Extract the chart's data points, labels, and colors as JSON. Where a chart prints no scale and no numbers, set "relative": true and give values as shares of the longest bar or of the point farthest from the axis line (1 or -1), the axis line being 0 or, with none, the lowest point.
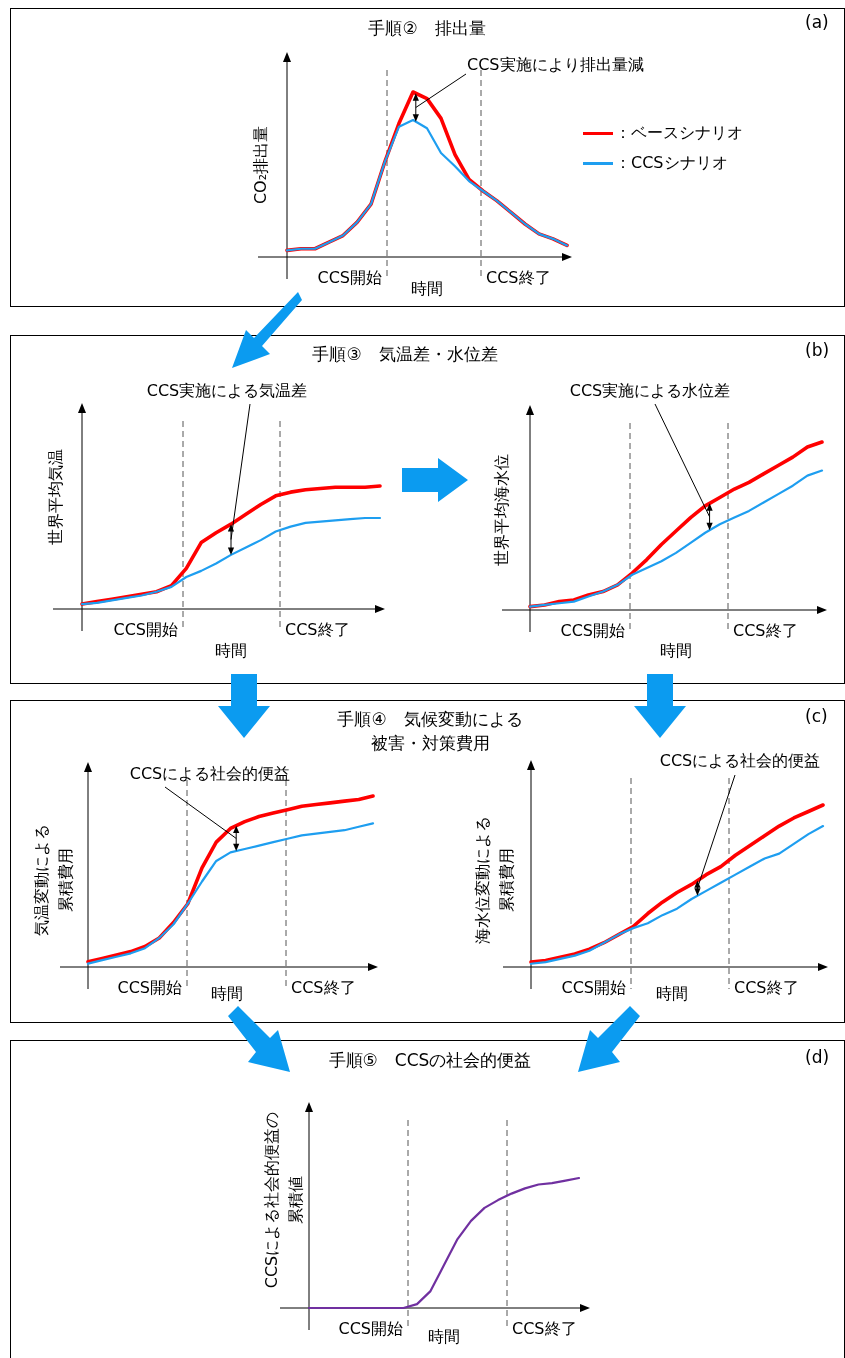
{
  "chart_data": [
    {
      "type": "line",
      "title": "手順②　排出量",
      "xlabel": "時間",
      "ylabel": "CO₂排出量",
      "relative": true,
      "legend": "right",
      "marker": "none",
      "categories": [
        null,
        null,
        null,
        null,
        null,
        null,
        null,
        null,
        null,
        null,
        null,
        null,
        null,
        null,
        null,
        null,
        null,
        null,
        null,
        null,
        null
      ],
      "series": [
        {
          "name": "：ベースシナリオ",
          "color": "#ff0000",
          "values": [
            0.04,
            0.05,
            0.05,
            0.09,
            0.13,
            0.21,
            0.32,
            0.58,
            0.81,
            1,
            0.96,
            0.84,
            0.62,
            0.47,
            0.4,
            0.34,
            0.27,
            0.2,
            0.14,
            0.11,
            0.07
          ]
        },
        {
          "name": "：CCSシナリオ",
          "color": "#1e9ef0",
          "values": [
            0.04,
            0.05,
            0.05,
            0.09,
            0.13,
            0.21,
            0.32,
            0.58,
            0.79,
            0.83,
            0.78,
            0.63,
            0.55,
            0.46,
            0.4,
            0.34,
            0.27,
            0.2,
            0.14,
            0.11,
            0.07
          ]
        }
      ],
      "annotations": [
        "(a)",
        "CCS実施により排出量減",
        "CCS開始",
        "CCS終了"
      ]
    },
    {
      "type": "line",
      "title": "手順③　気温差・水位差",
      "xlabel": "時間",
      "ylabel": "世界平均気温",
      "relative": true,
      "marker": "none",
      "categories": [
        null,
        null,
        null,
        null,
        null,
        null,
        null,
        null,
        null,
        null,
        null,
        null,
        null,
        null,
        null,
        null,
        null,
        null,
        null,
        null,
        null
      ],
      "series": [
        {
          "color": "#ff0000",
          "values": [
            0.04,
            0.06,
            0.08,
            0.1,
            0.12,
            0.14,
            0.19,
            0.33,
            0.54,
            0.62,
            0.69,
            0.77,
            0.85,
            0.92,
            0.95,
            0.97,
            0.98,
            0.99,
            0.99,
            0.99,
            1
          ]
        },
        {
          "color": "#1e9ef0",
          "values": [
            0.04,
            0.05,
            0.07,
            0.09,
            0.11,
            0.14,
            0.18,
            0.26,
            0.31,
            0.37,
            0.44,
            0.5,
            0.56,
            0.63,
            0.67,
            0.7,
            0.71,
            0.72,
            0.73,
            0.74,
            0.74
          ]
        }
      ],
      "annotations": [
        "(b)",
        "CCS実施による気温差",
        "CCS開始",
        "CCS終了"
      ]
    },
    {
      "type": "line",
      "xlabel": "時間",
      "ylabel": "世界平均海水位",
      "relative": true,
      "marker": "none",
      "categories": [
        null,
        null,
        null,
        null,
        null,
        null,
        null,
        null,
        null,
        null,
        null,
        null,
        null,
        null,
        null,
        null,
        null,
        null,
        null,
        null,
        null
      ],
      "series": [
        {
          "color": "#ff0000",
          "values": [
            0.02,
            0.03,
            0.05,
            0.06,
            0.09,
            0.11,
            0.15,
            0.22,
            0.3,
            0.39,
            0.47,
            0.55,
            0.62,
            0.67,
            0.72,
            0.76,
            0.81,
            0.86,
            0.91,
            0.97,
            1
          ]
        },
        {
          "color": "#1e9ef0",
          "values": [
            0.02,
            0.03,
            0.04,
            0.05,
            0.08,
            0.11,
            0.15,
            0.21,
            0.25,
            0.29,
            0.34,
            0.4,
            0.46,
            0.51,
            0.55,
            0.59,
            0.64,
            0.69,
            0.74,
            0.8,
            0.83
          ]
        }
      ],
      "annotations": [
        "CCS実施による水位差",
        "CCS開始",
        "CCS終了"
      ]
    },
    {
      "type": "line",
      "title": "手順④　気候変動による被害・対策費用",
      "xlabel": "時間",
      "ylabel": "気温変動による累積費用",
      "relative": true,
      "marker": "none",
      "categories": [
        null,
        null,
        null,
        null,
        null,
        null,
        null,
        null,
        null,
        null,
        null,
        null,
        null,
        null,
        null,
        null,
        null,
        null,
        null,
        null,
        null
      ],
      "series": [
        {
          "color": "#ff0000",
          "values": [
            0.03,
            0.05,
            0.07,
            0.09,
            0.12,
            0.17,
            0.26,
            0.37,
            0.58,
            0.73,
            0.81,
            0.85,
            0.88,
            0.9,
            0.92,
            0.94,
            0.95,
            0.96,
            0.97,
            0.98,
            1
          ]
        },
        {
          "color": "#1e9ef0",
          "values": [
            0.02,
            0.04,
            0.06,
            0.08,
            0.11,
            0.17,
            0.25,
            0.37,
            0.5,
            0.62,
            0.67,
            0.69,
            0.71,
            0.73,
            0.75,
            0.77,
            0.78,
            0.79,
            0.8,
            0.82,
            0.84
          ]
        }
      ],
      "annotations": [
        "(c)",
        "CCSによる社会的便益",
        "CCS開始",
        "CCS終了"
      ]
    },
    {
      "type": "line",
      "xlabel": "時間",
      "ylabel": "海水位変動による累積費用",
      "relative": true,
      "marker": "none",
      "categories": [
        null,
        null,
        null,
        null,
        null,
        null,
        null,
        null,
        null,
        null,
        null,
        null,
        null,
        null,
        null,
        null,
        null,
        null,
        null,
        null,
        null
      ],
      "series": [
        {
          "color": "#ff0000",
          "values": [
            0.03,
            0.04,
            0.06,
            0.08,
            0.11,
            0.15,
            0.2,
            0.25,
            0.33,
            0.4,
            0.46,
            0.51,
            0.57,
            0.62,
            0.69,
            0.75,
            0.81,
            0.87,
            0.92,
            0.96,
            1
          ]
        },
        {
          "color": "#1e9ef0",
          "values": [
            0.02,
            0.03,
            0.05,
            0.07,
            0.1,
            0.15,
            0.2,
            0.24,
            0.27,
            0.32,
            0.36,
            0.42,
            0.47,
            0.52,
            0.57,
            0.62,
            0.67,
            0.7,
            0.76,
            0.82,
            0.87
          ]
        }
      ],
      "annotations": [
        "CCSによる社会的便益",
        "CCS開始",
        "CCS終了"
      ]
    },
    {
      "type": "line",
      "title": "手順⑤　CCSの社会的便益",
      "xlabel": "時間",
      "ylabel": "CCSによる社会的便益の累積値",
      "relative": true,
      "marker": "none",
      "categories": [
        null,
        null,
        null,
        null,
        null,
        null,
        null,
        null,
        null,
        null,
        null,
        null,
        null,
        null,
        null,
        null,
        null,
        null,
        null,
        null,
        null
      ],
      "series": [
        {
          "color": "#7030a0",
          "values": [
            0,
            0,
            0,
            0,
            0,
            0,
            0,
            0,
            0.03,
            0.13,
            0.33,
            0.53,
            0.67,
            0.77,
            0.83,
            0.88,
            0.92,
            0.95,
            0.96,
            0.98,
            1
          ]
        }
      ],
      "annotations": [
        "(d)",
        "CCS開始",
        "CCS終了"
      ]
    }
  ]
}
